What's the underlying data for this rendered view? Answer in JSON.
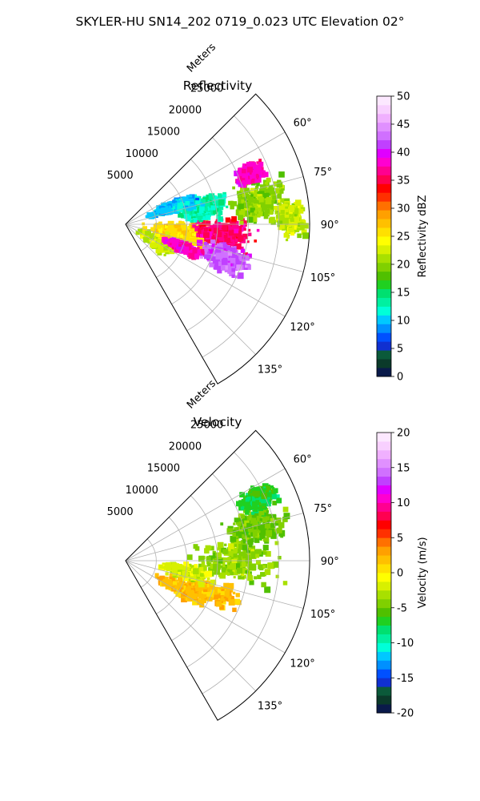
{
  "figure": {
    "suptitle": "SKYLER-HU  SN14_202  0719_0.023 UTC Elevation 02°"
  },
  "chart_data": [
    {
      "type": "heatmap",
      "projection": "polar-sector",
      "title": "Reflectivity",
      "radial_axis_label": "Meters",
      "azimuth_range_deg": [
        45,
        150
      ],
      "range_max_m": 30000,
      "radial_ticks": [
        5000,
        10000,
        15000,
        20000,
        25000
      ],
      "azimuth_ticks": [
        "60°",
        "75°",
        "90°",
        "105°",
        "120°",
        "135°"
      ],
      "grid": true,
      "colorbar": {
        "label": "Reflectivity dBZ",
        "range": [
          0,
          50
        ],
        "ticks": [
          0,
          5,
          10,
          15,
          20,
          25,
          30,
          35,
          40,
          45,
          50
        ],
        "colors": [
          "#0a1a4a",
          "#0b3a2a",
          "#0b5a3a",
          "#1030d0",
          "#0050ff",
          "#0090ff",
          "#00c8ff",
          "#00ffd8",
          "#00f0a0",
          "#00e070",
          "#20d020",
          "#50c000",
          "#80d000",
          "#a8e000",
          "#d8f000",
          "#ffff00",
          "#ffe000",
          "#ffc000",
          "#ffa000",
          "#ff7000",
          "#ff3000",
          "#ff0000",
          "#ff0050",
          "#ff0090",
          "#ff00d0",
          "#e000ff",
          "#c040ff",
          "#d070ff",
          "#e090ff",
          "#f0b0ff",
          "#f8d0ff",
          "#fce8ff"
        ]
      },
      "echo_cells": [
        {
          "az": 118,
          "r": 6000,
          "value": 22,
          "spread_az": 14,
          "spread_r": 4000
        },
        {
          "az": 100,
          "r": 9000,
          "value": 26,
          "spread_az": 16,
          "spread_r": 7000
        },
        {
          "az": 95,
          "r": 16000,
          "value": 36,
          "spread_az": 10,
          "spread_r": 6000
        },
        {
          "az": 108,
          "r": 17000,
          "value": 42,
          "spread_az": 9,
          "spread_r": 5000
        },
        {
          "az": 112,
          "r": 10000,
          "value": 38,
          "spread_az": 6,
          "spread_r": 4000
        },
        {
          "az": 80,
          "r": 22000,
          "value": 20,
          "spread_az": 12,
          "spread_r": 6000
        },
        {
          "az": 68,
          "r": 22000,
          "value": 38,
          "spread_az": 5,
          "spread_r": 3000
        },
        {
          "az": 78,
          "r": 13000,
          "value": 13,
          "spread_az": 12,
          "spread_r": 5000
        },
        {
          "az": 70,
          "r": 8000,
          "value": 10,
          "spread_az": 8,
          "spread_r": 5000
        },
        {
          "az": 88,
          "r": 27000,
          "value": 22,
          "spread_az": 8,
          "spread_r": 3000
        }
      ]
    },
    {
      "type": "heatmap",
      "projection": "polar-sector",
      "title": "Velocity",
      "radial_axis_label": "Meters",
      "azimuth_range_deg": [
        45,
        150
      ],
      "range_max_m": 30000,
      "radial_ticks": [
        5000,
        10000,
        15000,
        20000,
        25000
      ],
      "azimuth_ticks": [
        "60°",
        "75°",
        "90°",
        "105°",
        "120°",
        "135°"
      ],
      "grid": true,
      "colorbar": {
        "label": "Velocity (m/s)",
        "range": [
          -20,
          20
        ],
        "ticks": [
          -20,
          -15,
          -10,
          -5,
          0,
          5,
          10,
          15,
          20
        ],
        "colors": [
          "#0a1a4a",
          "#0b3a2a",
          "#0b5a3a",
          "#1030d0",
          "#0050ff",
          "#0090ff",
          "#00c8ff",
          "#00ffd8",
          "#00f0a0",
          "#00e070",
          "#20d020",
          "#50c000",
          "#80d000",
          "#a8e000",
          "#d8f000",
          "#ffff00",
          "#ffe000",
          "#ffc000",
          "#ffa000",
          "#ff7000",
          "#ff3000",
          "#ff0000",
          "#ff0050",
          "#ff0090",
          "#ff00d0",
          "#e000ff",
          "#c040ff",
          "#d070ff",
          "#e090ff",
          "#f0b0ff",
          "#f8d0ff",
          "#fce8ff"
        ]
      },
      "echo_cells": [
        {
          "az": 90,
          "r": 18000,
          "value": -4,
          "spread_az": 14,
          "spread_r": 9000
        },
        {
          "az": 75,
          "r": 22000,
          "value": -5,
          "spread_az": 10,
          "spread_r": 6000
        },
        {
          "az": 65,
          "r": 24000,
          "value": -7,
          "spread_az": 6,
          "spread_r": 4000
        },
        {
          "az": 110,
          "r": 14000,
          "value": 2,
          "spread_az": 8,
          "spread_r": 7000
        },
        {
          "az": 118,
          "r": 10000,
          "value": 2,
          "spread_az": 6,
          "spread_r": 5000
        },
        {
          "az": 100,
          "r": 10000,
          "value": -2,
          "spread_az": 8,
          "spread_r": 5000
        }
      ]
    }
  ]
}
